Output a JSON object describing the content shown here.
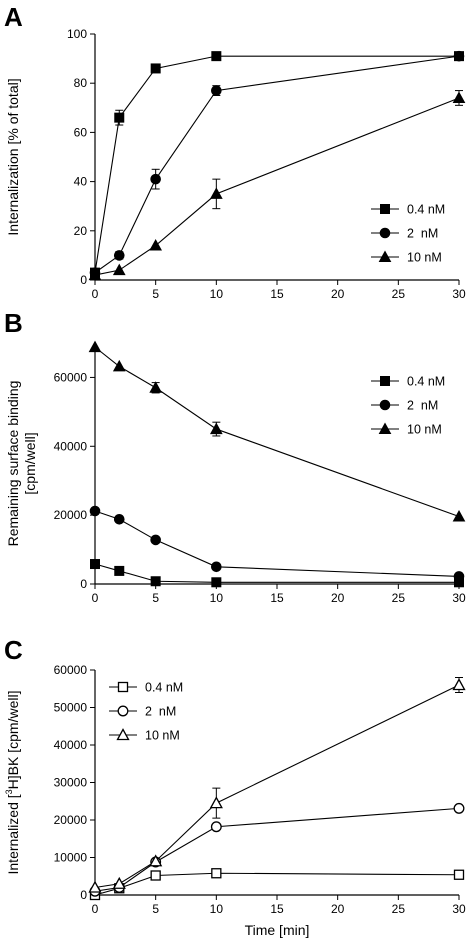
{
  "figure": {
    "panels": [
      "A",
      "B",
      "C"
    ]
  },
  "chart_data": [
    {
      "panel": "A",
      "type": "line",
      "ylabel": "Internalization [% of total]",
      "xlabel": "",
      "x": [
        0,
        2,
        5,
        10,
        30
      ],
      "xticks": [
        0,
        5,
        10,
        15,
        20,
        25,
        30
      ],
      "yticks": [
        0,
        20,
        40,
        60,
        80,
        100
      ],
      "xlim": [
        0,
        30
      ],
      "ylim": [
        0,
        100
      ],
      "legend_position": "lower-right",
      "filled": true,
      "series": [
        {
          "name": "0.4 nM",
          "marker": "square",
          "values": [
            3,
            66,
            86,
            91,
            91
          ],
          "errors": [
            0,
            3,
            0,
            0,
            0
          ]
        },
        {
          "name": "2  nM",
          "marker": "circle",
          "values": [
            3,
            10,
            41,
            77,
            91
          ],
          "errors": [
            0,
            1.5,
            4,
            2,
            0
          ]
        },
        {
          "name": "10 nM",
          "marker": "triangle",
          "values": [
            2,
            4,
            14,
            35,
            74
          ],
          "errors": [
            0,
            0,
            0,
            6,
            3
          ]
        }
      ]
    },
    {
      "panel": "B",
      "type": "line",
      "ylabel": "Remaining surface binding",
      "ylabel2": "[cpm/well]",
      "xlabel": "",
      "x": [
        0,
        2,
        5,
        10,
        30
      ],
      "xticks": [
        0,
        5,
        10,
        15,
        20,
        25,
        30
      ],
      "yticks": [
        0,
        20000,
        40000,
        60000
      ],
      "xlim": [
        0,
        30
      ],
      "ylim": [
        0,
        70000
      ],
      "legend_position": "top-right",
      "filled": true,
      "series": [
        {
          "name": "0.4 nM",
          "marker": "square",
          "values": [
            5800,
            3800,
            800,
            500,
            500
          ],
          "errors": [
            0,
            0,
            0,
            0,
            0
          ]
        },
        {
          "name": "2  nM",
          "marker": "circle",
          "values": [
            21200,
            18800,
            12800,
            5000,
            2200
          ],
          "errors": [
            0,
            0,
            0,
            0,
            0
          ]
        },
        {
          "name": "10 nM",
          "marker": "triangle",
          "values": [
            68800,
            63200,
            57000,
            45000,
            19600
          ],
          "errors": [
            0,
            0,
            1500,
            2000,
            0
          ]
        }
      ]
    },
    {
      "panel": "C",
      "type": "line",
      "ylabel": "Internalized [",
      "ylabel_sup": "3",
      "ylabel_rest": "H]BK [cpm/well]",
      "xlabel": "Time [min]",
      "x": [
        0,
        2,
        5,
        10,
        30
      ],
      "xticks": [
        0,
        5,
        10,
        15,
        20,
        25,
        30
      ],
      "yticks": [
        0,
        10000,
        20000,
        30000,
        40000,
        50000,
        60000
      ],
      "xlim": [
        0,
        30
      ],
      "ylim": [
        0,
        60000
      ],
      "legend_position": "top-left",
      "filled": false,
      "series": [
        {
          "name": "0.4 nM",
          "marker": "square",
          "values": [
            0,
            1800,
            5200,
            5800,
            5400
          ],
          "errors": [
            0,
            0,
            0,
            0,
            0
          ]
        },
        {
          "name": "2  nM",
          "marker": "circle",
          "values": [
            1000,
            2000,
            8800,
            18200,
            23100
          ],
          "errors": [
            0,
            0,
            0,
            0,
            0
          ]
        },
        {
          "name": "10 nM",
          "marker": "triangle",
          "values": [
            2000,
            3000,
            9000,
            24500,
            56000
          ],
          "errors": [
            0,
            0,
            0,
            4000,
            2000
          ]
        }
      ]
    }
  ]
}
